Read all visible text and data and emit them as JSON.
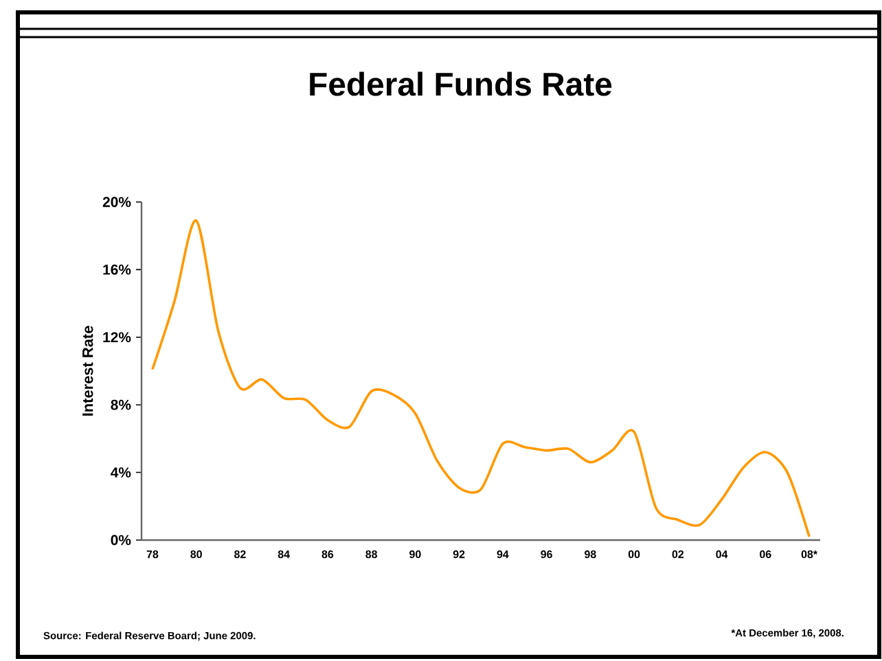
{
  "chart_data": {
    "type": "line",
    "title": "Federal Funds Rate",
    "ylabel": "Interest Rate",
    "categories": [
      "78",
      null,
      "80",
      null,
      "82",
      null,
      "84",
      null,
      "86",
      null,
      "88",
      null,
      "90",
      null,
      "92",
      null,
      "94",
      null,
      "96",
      null,
      "98",
      null,
      "00",
      null,
      "02",
      null,
      "04",
      null,
      "06",
      null,
      "08*"
    ],
    "series": [
      {
        "color": "#ff9900",
        "values": [
          10.1,
          14.1,
          18.9,
          12.4,
          9.0,
          9.5,
          8.4,
          8.3,
          7.1,
          6.7,
          8.8,
          8.6,
          7.5,
          4.7,
          3.1,
          3.0,
          5.7,
          5.5,
          5.3,
          5.4,
          4.6,
          5.3,
          6.4,
          1.9,
          1.2,
          0.9,
          2.4,
          4.3,
          5.2,
          4.0,
          0.2
        ]
      }
    ],
    "ylim": [
      0,
      20
    ],
    "yticks": [
      {
        "value": 0,
        "label": "0%"
      },
      {
        "value": 4,
        "label": "4%"
      },
      {
        "value": 8,
        "label": "8%"
      },
      {
        "value": 12,
        "label": "12%"
      },
      {
        "value": 16,
        "label": "16%"
      },
      {
        "value": 20,
        "label": "20%"
      }
    ],
    "grid": false,
    "marker": "none",
    "line_style": "solid",
    "annotations": [
      "Source: Federal Reserve Board; June 2009.",
      "*At December 16, 2008."
    ]
  }
}
